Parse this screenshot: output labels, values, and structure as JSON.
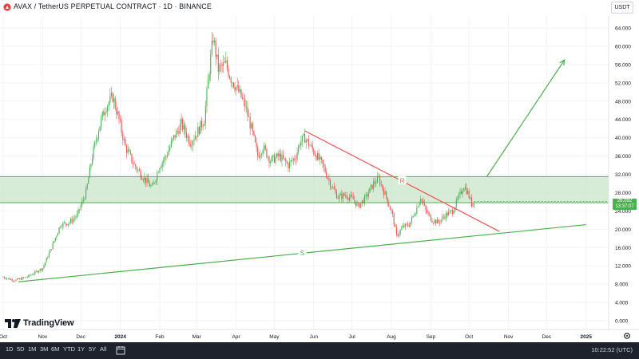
{
  "header": {
    "title": "AVAX / TetherUS PERPETUAL CONTRACT · 1D · BINANCE",
    "currency": "USDT"
  },
  "colors": {
    "up": "#26a69a",
    "candle_up": "#4caf50",
    "candle_down": "#ef5350",
    "zone_fill": "#c8e6c9",
    "zone_line": "#4caf50",
    "support": "#4caf50",
    "resistance": "#ef5350",
    "arrow": "#4caf50"
  },
  "branding": {
    "logo_text": "TradingView"
  },
  "toolbar": {
    "timeframes": [
      "1D",
      "5D",
      "1M",
      "3M",
      "6M",
      "YTD",
      "1Y",
      "5Y",
      "All"
    ],
    "clock": "10:22:52 (UTC)"
  },
  "price_tag": {
    "price": "26.092",
    "countdown": "13:37:07"
  },
  "chart_data": {
    "type": "candlestick",
    "x_labels": [
      "Oct",
      "Nov",
      "Dec",
      "2024",
      "Feb",
      "Mar",
      "Apr",
      "May",
      "Jun",
      "Jul",
      "Aug",
      "Sep",
      "Oct",
      "Nov",
      "Dec",
      "2025"
    ],
    "y_ticks": [
      "64.000",
      "60.000",
      "56.000",
      "52.000",
      "48.000",
      "44.000",
      "40.000",
      "36.000",
      "32.000",
      "28.000",
      "24.000",
      "20.000",
      "16.000",
      "12.000",
      "8.000",
      "4.000",
      "0.000"
    ],
    "ylim": [
      0,
      64
    ],
    "close_path": [
      [
        "2023-10-01",
        9.5
      ],
      [
        "2023-10-10",
        8.8
      ],
      [
        "2023-10-20",
        9.6
      ],
      [
        "2023-11-01",
        11.5
      ],
      [
        "2023-11-08",
        16.0
      ],
      [
        "2023-11-15",
        21.0
      ],
      [
        "2023-11-22",
        21.5
      ],
      [
        "2023-11-28",
        23.0
      ],
      [
        "2023-12-05",
        28.0
      ],
      [
        "2023-12-10",
        36.0
      ],
      [
        "2023-12-15",
        42.0
      ],
      [
        "2023-12-20",
        46.5
      ],
      [
        "2023-12-26",
        49.0
      ],
      [
        "2023-12-30",
        45.0
      ],
      [
        "2024-01-05",
        38.0
      ],
      [
        "2024-01-12",
        34.0
      ],
      [
        "2024-01-20",
        31.0
      ],
      [
        "2024-01-26",
        29.0
      ],
      [
        "2024-02-01",
        34.0
      ],
      [
        "2024-02-06",
        36.0
      ],
      [
        "2024-02-12",
        40.0
      ],
      [
        "2024-02-18",
        43.0
      ],
      [
        "2024-02-25",
        39.0
      ],
      [
        "2024-03-01",
        41.0
      ],
      [
        "2024-03-07",
        44.0
      ],
      [
        "2024-03-11",
        55.0
      ],
      [
        "2024-03-14",
        62.0
      ],
      [
        "2024-03-18",
        55.0
      ],
      [
        "2024-03-24",
        56.0
      ],
      [
        "2024-03-28",
        53.0
      ],
      [
        "2024-04-03",
        50.0
      ],
      [
        "2024-04-08",
        47.0
      ],
      [
        "2024-04-13",
        42.0
      ],
      [
        "2024-04-18",
        36.0
      ],
      [
        "2024-04-22",
        38.0
      ],
      [
        "2024-04-28",
        35.0
      ],
      [
        "2024-05-05",
        36.0
      ],
      [
        "2024-05-12",
        34.0
      ],
      [
        "2024-05-18",
        36.0
      ],
      [
        "2024-05-21",
        39.0
      ],
      [
        "2024-05-25",
        40.0
      ],
      [
        "2024-06-01",
        37.0
      ],
      [
        "2024-06-08",
        34.0
      ],
      [
        "2024-06-14",
        30.0
      ],
      [
        "2024-06-20",
        27.0
      ],
      [
        "2024-06-26",
        27.5
      ],
      [
        "2024-07-02",
        26.5
      ],
      [
        "2024-07-06",
        25.0
      ],
      [
        "2024-07-12",
        27.0
      ],
      [
        "2024-07-18",
        30.0
      ],
      [
        "2024-07-22",
        31.0
      ],
      [
        "2024-07-28",
        27.0
      ],
      [
        "2024-08-02",
        23.0
      ],
      [
        "2024-08-05",
        18.5
      ],
      [
        "2024-08-10",
        20.5
      ],
      [
        "2024-08-15",
        21.0
      ],
      [
        "2024-08-20",
        24.0
      ],
      [
        "2024-08-24",
        27.0
      ],
      [
        "2024-08-28",
        24.0
      ],
      [
        "2024-09-02",
        22.0
      ],
      [
        "2024-09-07",
        21.5
      ],
      [
        "2024-09-12",
        23.0
      ],
      [
        "2024-09-18",
        24.0
      ],
      [
        "2024-09-23",
        27.0
      ],
      [
        "2024-09-27",
        29.5
      ],
      [
        "2024-09-30",
        28.0
      ],
      [
        "2024-10-03",
        25.5
      ],
      [
        "2024-10-05",
        26.1
      ]
    ],
    "zone": {
      "upper": 31.5,
      "lower": 25.8
    },
    "support_line": {
      "start": [
        "2023-10-13",
        8.5
      ],
      "end": [
        "2025-01-01",
        21.0
      ],
      "label": "S"
    },
    "resistance_line": {
      "start": [
        "2024-05-25",
        41.5
      ],
      "end": [
        "2024-10-25",
        19.5
      ],
      "label": "R"
    },
    "projection_arrow": {
      "start": [
        "2024-10-15",
        31.5
      ],
      "end": [
        "2024-12-15",
        57.0
      ]
    }
  }
}
